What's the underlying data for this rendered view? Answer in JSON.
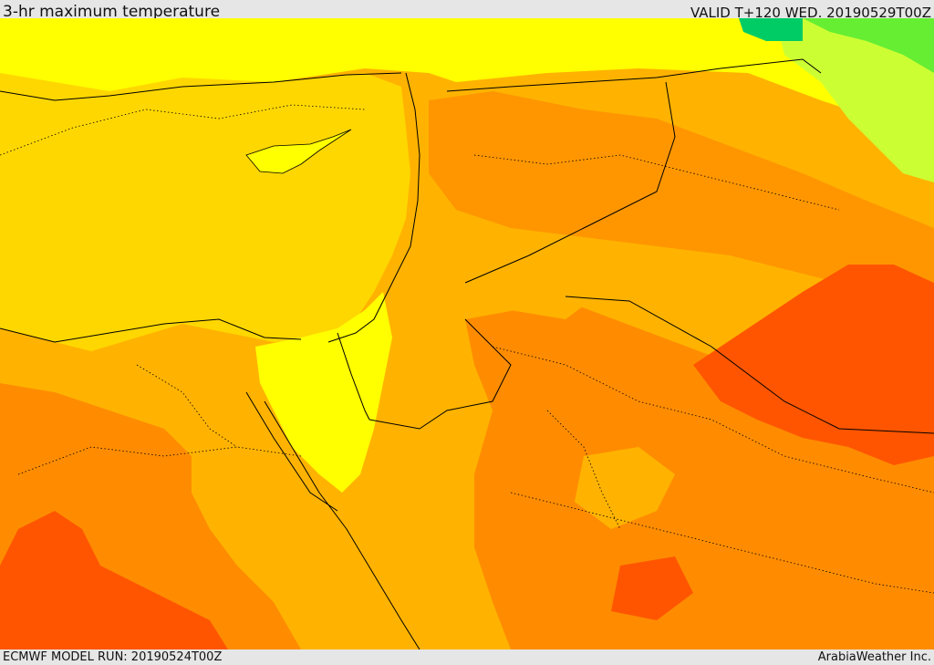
{
  "header": {
    "title": "3-hr maximum temperature",
    "valid": "VALID T+120 WED. 20190529T00Z"
  },
  "footer": {
    "model_run": "ECMWF MODEL RUN: 20190524T00Z",
    "credit": "ArabiaWeather Inc."
  },
  "map": {
    "field": "3-hr maximum temperature",
    "colors": {
      "cool": "#00cc66",
      "green": "#66ee33",
      "lime": "#ccff33",
      "yellow": "#ffff00",
      "gold": "#ffd700",
      "light_orange": "#ffb300",
      "orange": "#ff8c00",
      "red_orange": "#ff5500",
      "borders": "#000000"
    }
  }
}
